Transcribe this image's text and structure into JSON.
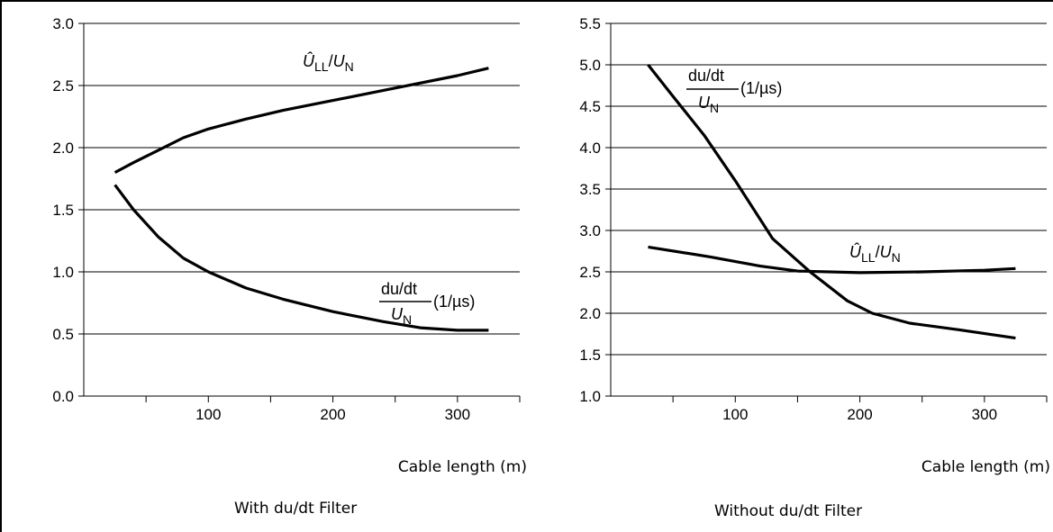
{
  "chart_data": [
    {
      "type": "line",
      "caption": "With du/dt Filter",
      "xlabel": "Cable length (m)",
      "ylabel": "",
      "xlim": [
        0,
        350
      ],
      "ylim": [
        0.0,
        3.0
      ],
      "xticks": [
        100,
        200,
        300
      ],
      "yticks": [
        "0.0",
        "0.5",
        "1.0",
        "1.5",
        "2.0",
        "2.5",
        "3.0"
      ],
      "grid": "horizontal",
      "series": [
        {
          "name": "Û_LL/U_N",
          "points": [
            [
              25,
              1.8
            ],
            [
              40,
              1.88
            ],
            [
              60,
              1.98
            ],
            [
              80,
              2.08
            ],
            [
              100,
              2.15
            ],
            [
              130,
              2.23
            ],
            [
              160,
              2.3
            ],
            [
              200,
              2.38
            ],
            [
              250,
              2.48
            ],
            [
              300,
              2.58
            ],
            [
              325,
              2.64
            ]
          ]
        },
        {
          "name": "du/dt / U_N (1/µs)",
          "points": [
            [
              25,
              1.7
            ],
            [
              40,
              1.5
            ],
            [
              60,
              1.28
            ],
            [
              80,
              1.11
            ],
            [
              100,
              1.0
            ],
            [
              130,
              0.87
            ],
            [
              160,
              0.78
            ],
            [
              200,
              0.68
            ],
            [
              240,
              0.6
            ],
            [
              270,
              0.55
            ],
            [
              300,
              0.53
            ],
            [
              325,
              0.53
            ]
          ]
        }
      ],
      "annotations": {
        "peak": {
          "hat": "Û",
          "sub1": "LL",
          "sep": "/",
          "base2": "U",
          "sub2": "N"
        },
        "dudt": {
          "numerator": "du/dt",
          "denominator_base": "U",
          "denominator_sub": "N",
          "unit": "(1/µs)"
        }
      }
    },
    {
      "type": "line",
      "caption": "Without du/dt Filter",
      "xlabel": "Cable length (m)",
      "ylabel": "",
      "xlim": [
        0,
        350
      ],
      "ylim": [
        1.0,
        5.5
      ],
      "xticks": [
        100,
        200,
        300
      ],
      "yticks": [
        "1.0",
        "1.5",
        "2.0",
        "2.5",
        "3.0",
        "3.5",
        "4.0",
        "4.5",
        "5.0",
        "5.5"
      ],
      "grid": "horizontal",
      "series": [
        {
          "name": "du/dt / U_N (1/µs)",
          "points": [
            [
              30,
              5.0
            ],
            [
              50,
              4.62
            ],
            [
              75,
              4.15
            ],
            [
              100,
              3.6
            ],
            [
              130,
              2.9
            ],
            [
              160,
              2.5
            ],
            [
              190,
              2.15
            ],
            [
              210,
              2.0
            ],
            [
              240,
              1.88
            ],
            [
              280,
              1.8
            ],
            [
              325,
              1.7
            ]
          ]
        },
        {
          "name": "Û_LL/U_N",
          "points": [
            [
              30,
              2.8
            ],
            [
              80,
              2.68
            ],
            [
              120,
              2.57
            ],
            [
              150,
              2.51
            ],
            [
              200,
              2.49
            ],
            [
              250,
              2.5
            ],
            [
              300,
              2.52
            ],
            [
              325,
              2.54
            ]
          ]
        }
      ],
      "annotations": {
        "peak": {
          "hat": "Û",
          "sub1": "LL",
          "sep": "/",
          "base2": "U",
          "sub2": "N"
        },
        "dudt": {
          "numerator": "du/dt",
          "denominator_base": "U",
          "denominator_sub": "N",
          "unit": "(1/µs)"
        }
      }
    }
  ]
}
